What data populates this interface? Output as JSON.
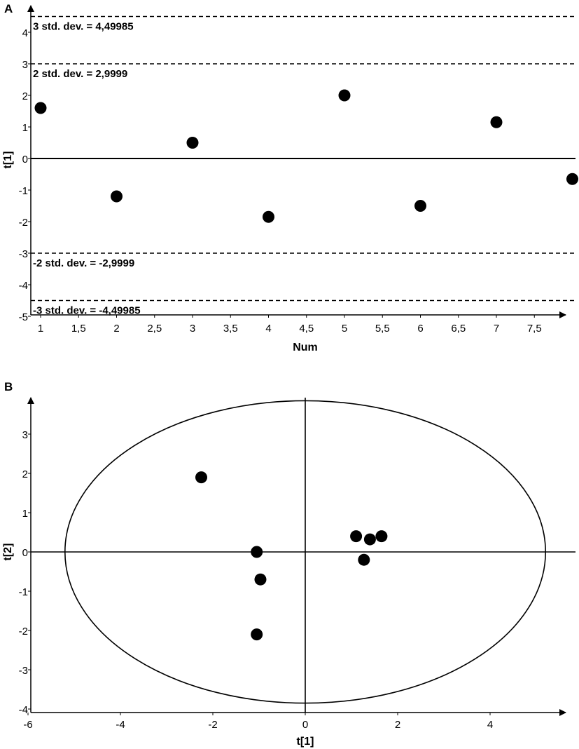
{
  "chart_data": [
    {
      "panel_label": "A",
      "type": "scatter",
      "xlabel": "Num",
      "ylabel": "t[1]",
      "xlim": [
        0.92,
        8.0
      ],
      "ylim": [
        -5,
        4.6
      ],
      "x_ticks": [
        "1",
        "1,5",
        "2",
        "2,5",
        "3",
        "3,5",
        "4",
        "4,5",
        "5",
        "5,5",
        "6",
        "6,5",
        "7",
        "7,5"
      ],
      "y_ticks": [
        "4",
        "3",
        "2",
        "1",
        "0",
        "-1",
        "-2",
        "-3",
        "-4",
        "-5"
      ],
      "points": [
        {
          "x": 1,
          "y": 1.6
        },
        {
          "x": 2,
          "y": -1.2
        },
        {
          "x": 3,
          "y": 0.5
        },
        {
          "x": 4,
          "y": -1.85
        },
        {
          "x": 5,
          "y": 2.0
        },
        {
          "x": 6,
          "y": -1.5
        },
        {
          "x": 7,
          "y": 1.15
        },
        {
          "x": 8,
          "y": -0.65
        }
      ],
      "reference_lines": [
        {
          "y": 4.49985,
          "label": "3 std. dev. = 4,49985"
        },
        {
          "y": 2.9999,
          "label": "2 std. dev. = 2,9999"
        },
        {
          "y": -2.9999,
          "label": "-2 std. dev. = -2,9999"
        },
        {
          "y": -4.49985,
          "label": "-3 std. dev. = -4,49985"
        }
      ],
      "grid": false
    },
    {
      "panel_label": "B",
      "type": "scatter",
      "xlabel": "t[1]",
      "ylabel": "t[2]",
      "xlim": [
        -6,
        6
      ],
      "ylim": [
        -4,
        4
      ],
      "x_ticks": [
        "-6",
        "-4",
        "-2",
        "0",
        "2",
        "4"
      ],
      "y_ticks": [
        "3",
        "2",
        "1",
        "0",
        "-1",
        "-2",
        "-3",
        "-4"
      ],
      "points": [
        {
          "x": -2.25,
          "y": 1.9
        },
        {
          "x": -1.05,
          "y": 0.0
        },
        {
          "x": -0.97,
          "y": -0.7
        },
        {
          "x": -1.05,
          "y": -2.1
        },
        {
          "x": 1.1,
          "y": 0.4
        },
        {
          "x": 1.4,
          "y": 0.32
        },
        {
          "x": 1.65,
          "y": 0.4
        },
        {
          "x": 1.27,
          "y": -0.2
        }
      ],
      "ellipse": {
        "cx": 0,
        "cy": 0,
        "rx": 5.2,
        "ry": 3.85
      },
      "grid": false
    }
  ]
}
